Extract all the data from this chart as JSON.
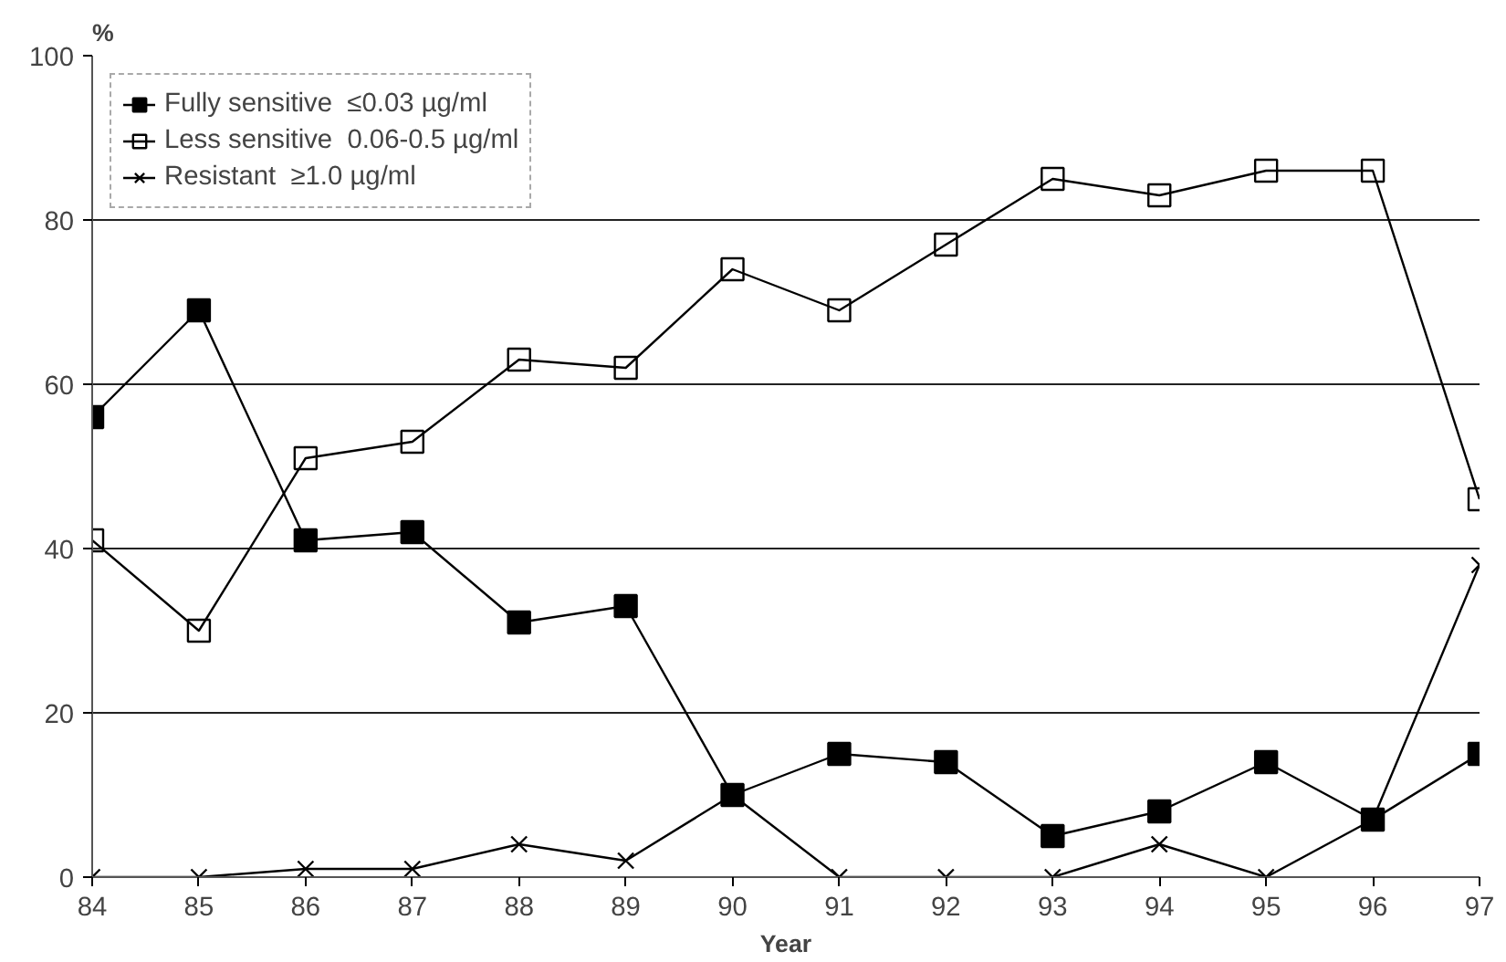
{
  "chart_data": {
    "type": "line",
    "xlabel": "Year",
    "ylabel": "%",
    "x": [
      84,
      85,
      86,
      87,
      88,
      89,
      90,
      91,
      92,
      93,
      94,
      95,
      96,
      97
    ],
    "xlim": [
      84,
      97
    ],
    "xticks": [
      84,
      85,
      86,
      87,
      88,
      89,
      90,
      91,
      92,
      93,
      94,
      95,
      96,
      97
    ],
    "ylim": [
      0,
      100
    ],
    "yticks": [
      0,
      20,
      40,
      60,
      80,
      100
    ],
    "grid": "y",
    "legend": "top left",
    "series": [
      {
        "name": "Fully sensitive  ≤0.03 µg/ml",
        "color": "#000000",
        "marker": "square",
        "values": [
          56,
          69,
          41,
          42,
          31,
          33,
          10,
          15,
          14,
          5,
          8,
          14,
          7,
          15
        ]
      },
      {
        "name": "Less sensitive  0.06-0.5 µg/ml",
        "color": "#000000",
        "marker": "square_open",
        "values": [
          41,
          30,
          51,
          53,
          63,
          62,
          74,
          69,
          77,
          85,
          83,
          86,
          86,
          46
        ]
      },
      {
        "name": "Resistant  ≥1.0 µg/ml",
        "color": "#000000",
        "marker": "x",
        "values": [
          0,
          0,
          1,
          1,
          4,
          2,
          10,
          0,
          0,
          0,
          4,
          0,
          7,
          38
        ]
      }
    ]
  }
}
